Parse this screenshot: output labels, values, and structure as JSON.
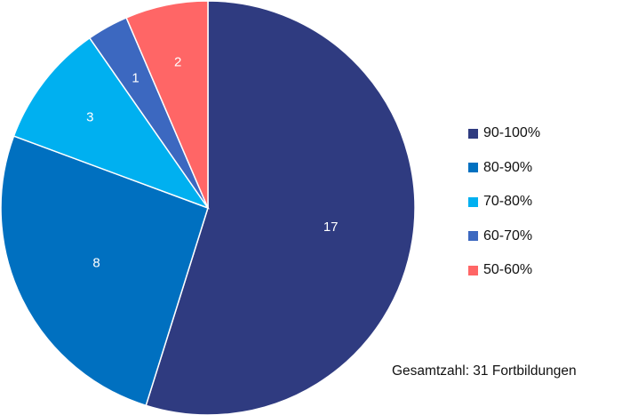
{
  "chart_data": {
    "type": "pie",
    "categories": [
      "90-100%",
      "80-90%",
      "70-80%",
      "60-70%",
      "50-60%"
    ],
    "values": [
      17,
      8,
      3,
      1,
      2
    ],
    "colors": [
      "#2f3b80",
      "#0070c0",
      "#00b0f0",
      "#3c68c0",
      "#ff6666"
    ],
    "start_angle": "top, clockwise",
    "data_labels": [
      "17",
      "8",
      "3",
      "1",
      "2"
    ],
    "legend_position": "right",
    "annotation": "Gesamtzahl: 31 Fortbildungen"
  }
}
